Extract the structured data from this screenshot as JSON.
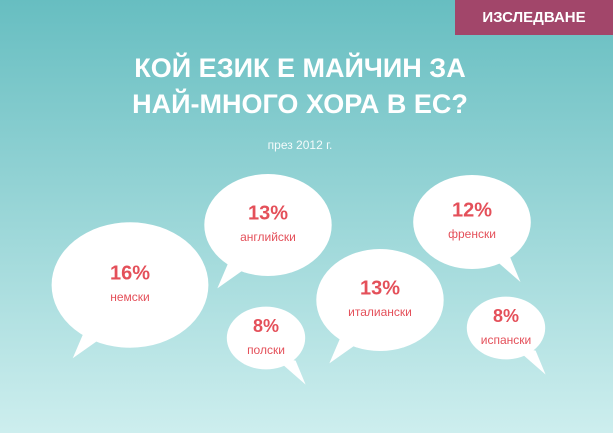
{
  "chart_data": {
    "type": "bubble",
    "tag": "ИЗСЛЕДВАНЕ",
    "title": [
      "КОЙ ЕЗИК Е МАЙЧИН ЗА",
      "НАЙ-МНОГО ХОРА В ЕС?"
    ],
    "subtitle": "през 2012 г.",
    "categories": [
      "немски",
      "английски",
      "полски",
      "италиански",
      "френски",
      "испански"
    ],
    "values": [
      16,
      13,
      8,
      13,
      12,
      8
    ],
    "value_labels": [
      "16%",
      "13%",
      "8%",
      "13%",
      "12%",
      "8%"
    ],
    "color": "#ffffff",
    "label_color": "#e4505a"
  }
}
